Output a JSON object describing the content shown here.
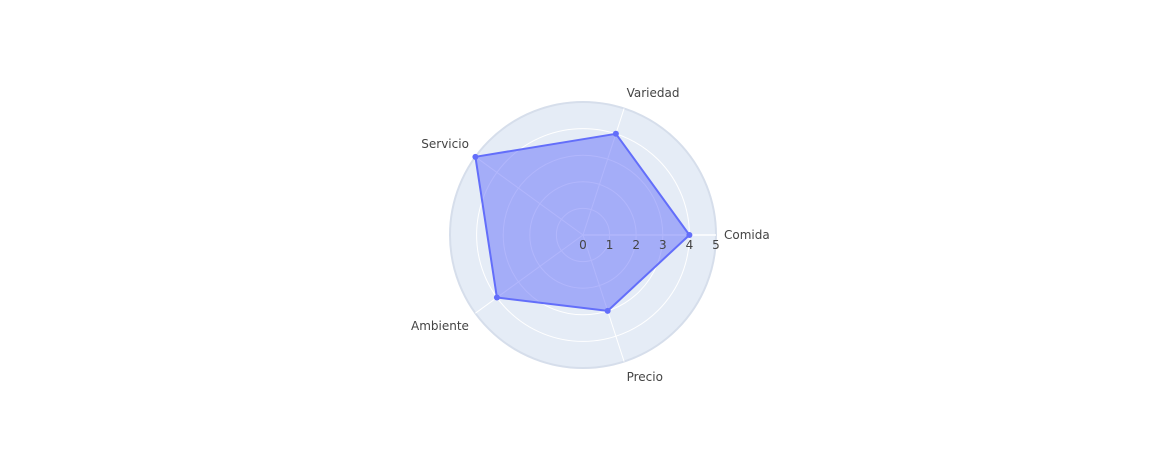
{
  "chart_data": {
    "type": "radar",
    "categories": [
      "Comida",
      "Variedad",
      "Servicio",
      "Ambiente",
      "Precio"
    ],
    "values": [
      4,
      4,
      5,
      4,
      3
    ],
    "radial_range": [
      0,
      5
    ],
    "radial_ticks": [
      "0",
      "1",
      "2",
      "3",
      "4",
      "5"
    ],
    "grid": true,
    "legend": false
  },
  "colors": {
    "polar_background": "#E5ECF6",
    "gridline": "#FFFFFF",
    "series_line": "#636EFA",
    "series_fill": "#636EFA"
  }
}
